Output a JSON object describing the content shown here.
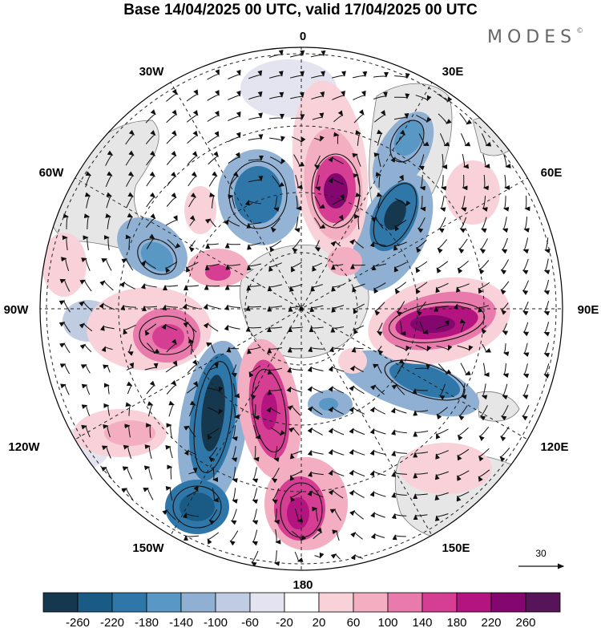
{
  "header": {
    "title": "Base 14/04/2025 00 UTC, valid 17/04/2025 00 UTC",
    "brand": "MODES",
    "brand_mark": "©"
  },
  "map": {
    "projection": "south polar stereographic",
    "longitude_labels": {
      "top": "0",
      "upper_left": "30W",
      "upper_right": "30E",
      "mid_upper_left": "60W",
      "mid_upper_right": "60E",
      "left": "90W",
      "right": "90E",
      "mid_lower_left": "120W",
      "mid_lower_right": "120E",
      "lower_left": "150W",
      "lower_right": "150E",
      "bottom": "180"
    },
    "reference_vector_label": "30",
    "colors": {
      "land": "#e6e6e6",
      "grid": "#222222",
      "vector": "#111111"
    }
  },
  "colorbar": {
    "tick_labels": [
      "-260",
      "-220",
      "-180",
      "-140",
      "-100",
      "-60",
      "-20",
      "20",
      "60",
      "100",
      "140",
      "180",
      "220",
      "260"
    ],
    "colors": [
      "#16384f",
      "#1a5b86",
      "#2f77a9",
      "#5998c5",
      "#8fb0d3",
      "#c0cce1",
      "#e4e4f1",
      "#ffffff",
      "#f8d2d8",
      "#f3aec1",
      "#e87bab",
      "#d63e93",
      "#b4147f",
      "#83076f",
      "#551558"
    ]
  }
}
